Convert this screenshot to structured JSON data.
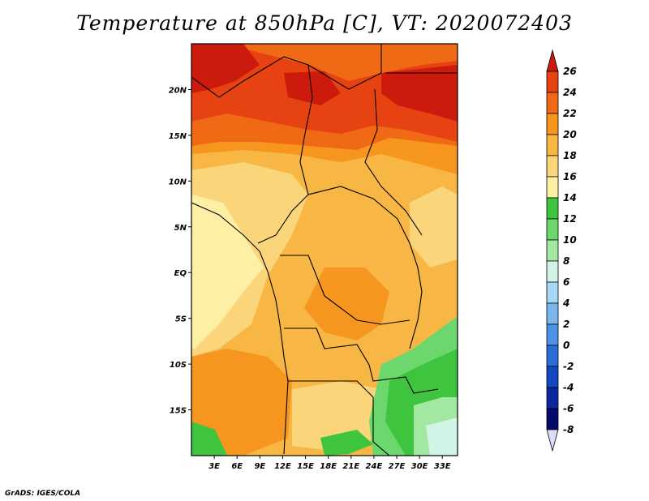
{
  "title": "Temperature at 850hPa [C], VT: 2020072403",
  "credit": "GrADS: IGES/COLA",
  "map": {
    "region": "Central Africa",
    "lat_labels": [
      "20N",
      "15N",
      "10N",
      "5N",
      "EQ",
      "5S",
      "10S",
      "15S"
    ],
    "lat_values": [
      20,
      15,
      10,
      5,
      0,
      -5,
      -10,
      -15
    ],
    "lon_labels": [
      "3E",
      "6E",
      "9E",
      "12E",
      "15E",
      "18E",
      "21E",
      "24E",
      "27E",
      "30E",
      "33E"
    ],
    "lon_values": [
      3,
      6,
      9,
      12,
      15,
      18,
      21,
      24,
      27,
      30,
      33
    ],
    "lon_range": [
      0,
      35
    ],
    "lat_range": [
      -20,
      25
    ]
  },
  "colorbar": {
    "labels": [
      "26",
      "24",
      "22",
      "20",
      "18",
      "16",
      "14",
      "12",
      "10",
      "8",
      "6",
      "4",
      "2",
      "0",
      "-2",
      "-4",
      "-6",
      "-8"
    ],
    "colors": [
      "#cc1b0c",
      "#e64212",
      "#f06a16",
      "#f6961f",
      "#f8b644",
      "#fbd57a",
      "#fdf0a4",
      "#3ec43e",
      "#6cd76c",
      "#a2e8a0",
      "#d2f4e6",
      "#a6d8f4",
      "#7ab6ec",
      "#4e92e4",
      "#2a6cd8",
      "#1448c0",
      "#0a289c",
      "#060a6a",
      "#ddddf8"
    ]
  }
}
